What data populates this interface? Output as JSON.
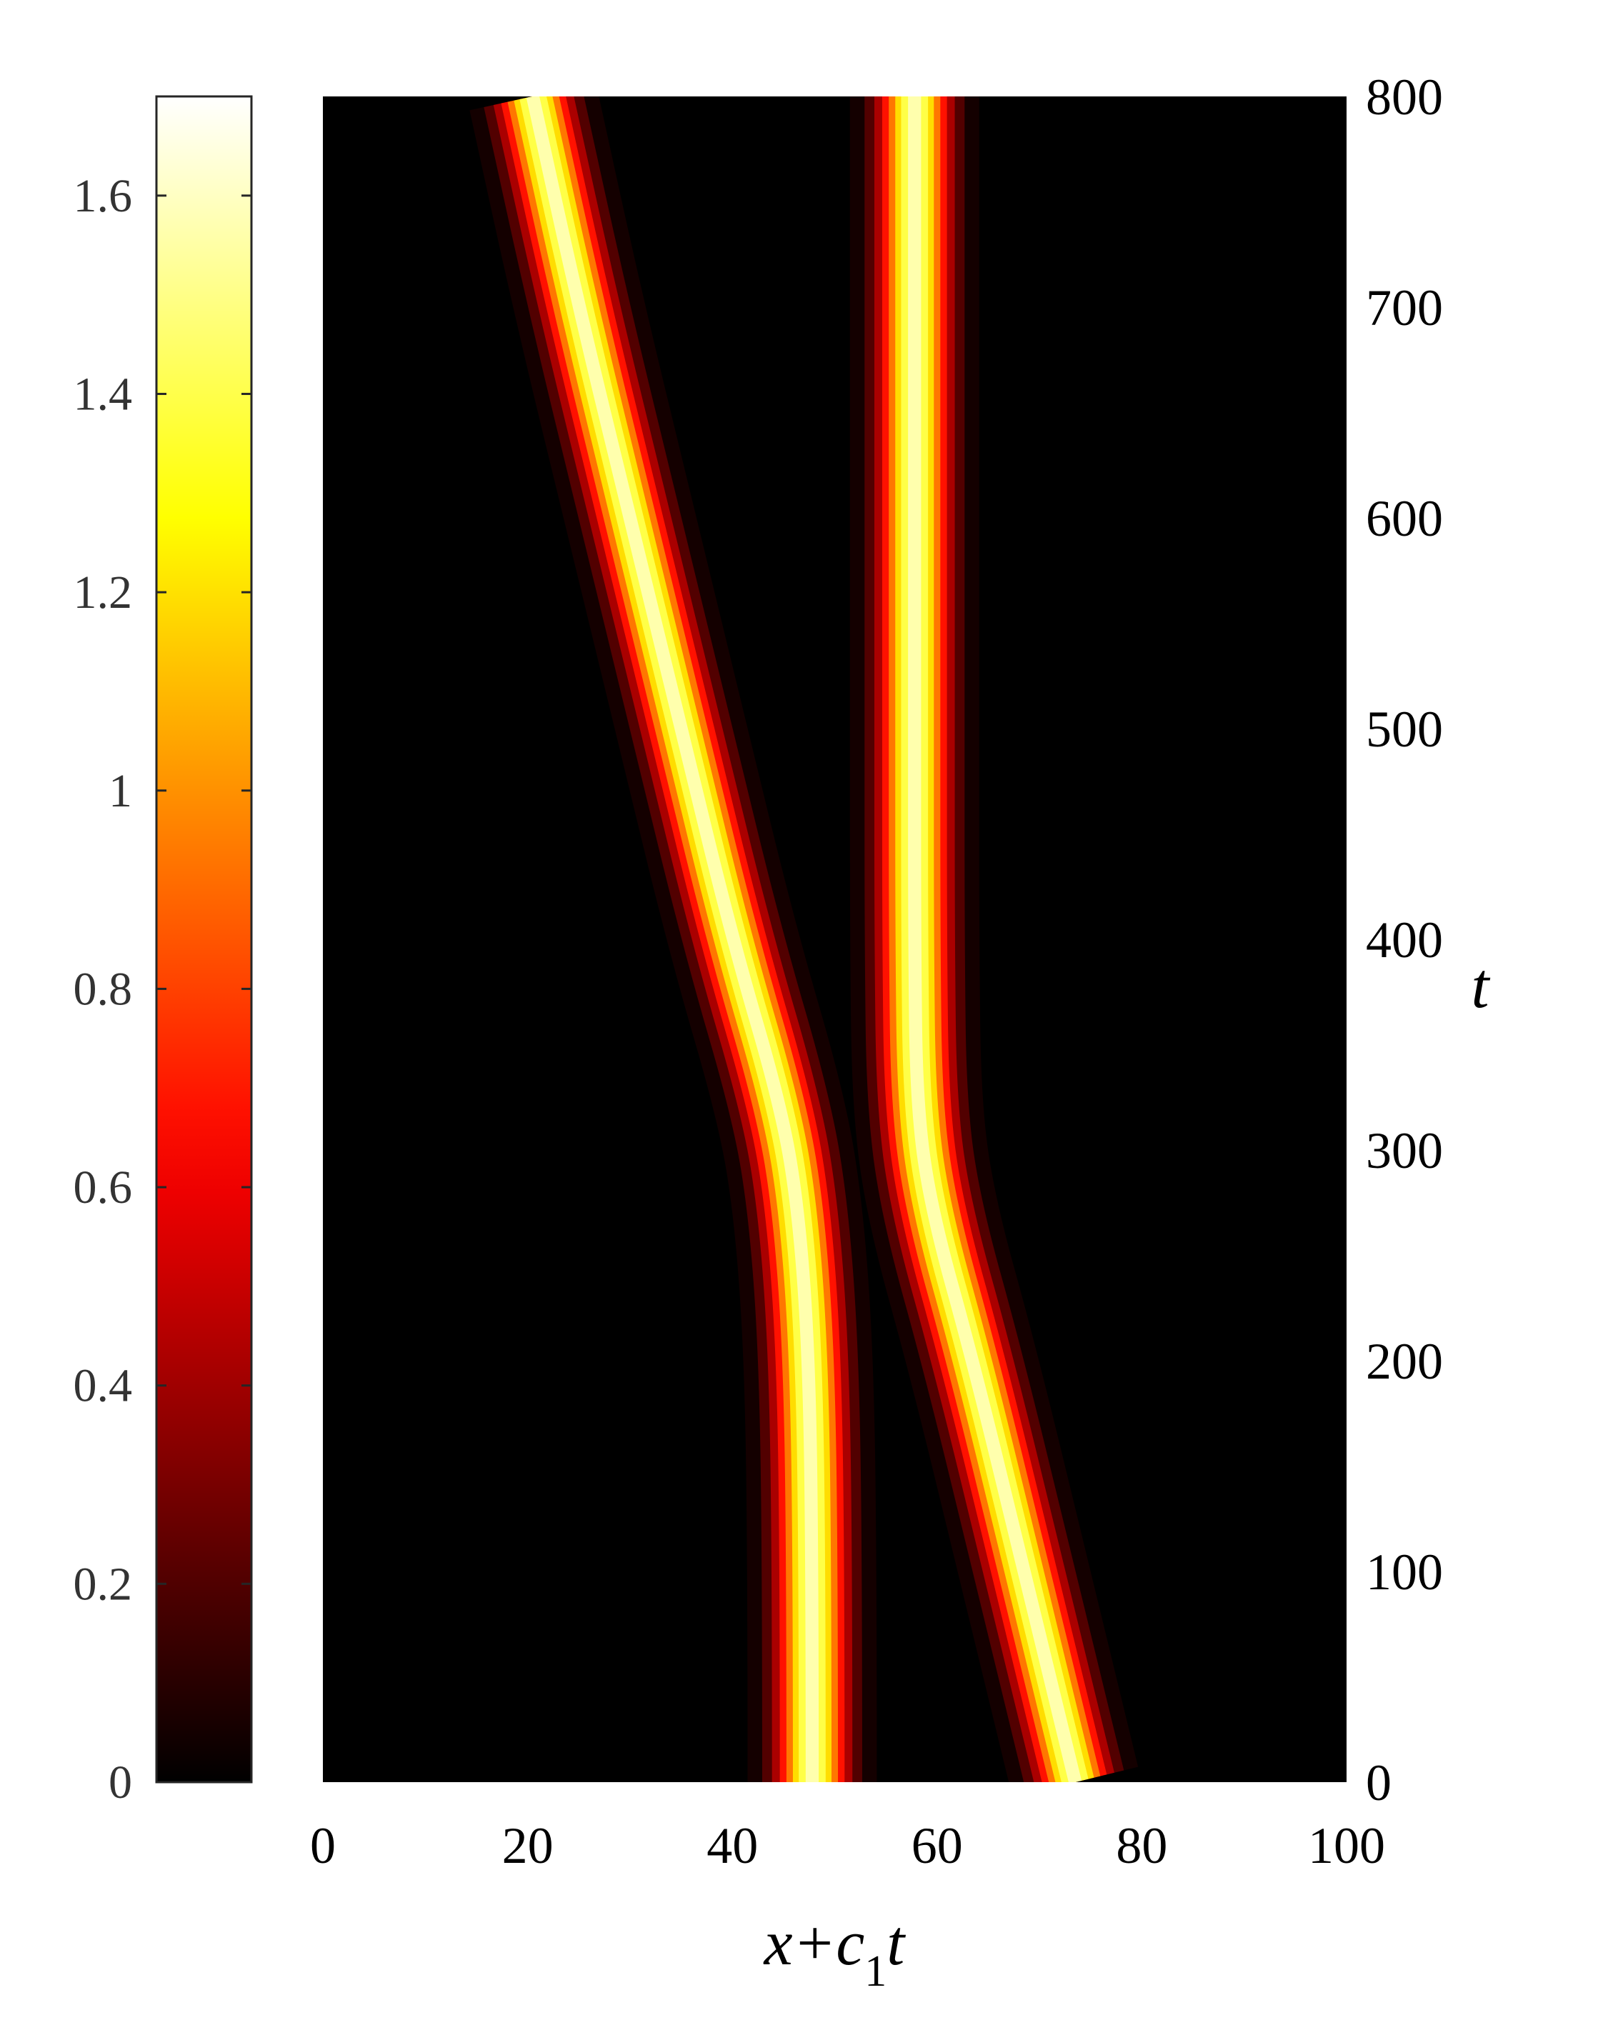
{
  "chart_data": {
    "type": "heatmap",
    "title": "",
    "xlabel": {
      "prefix": "x+c",
      "subscript": "1",
      "suffix": "t"
    },
    "ylabel": "t",
    "xlim": [
      0,
      100
    ],
    "ylim": [
      0,
      800
    ],
    "x_ticks": [
      "0",
      "20",
      "40",
      "60",
      "80",
      "100"
    ],
    "y_ticks": [
      "0",
      "100",
      "200",
      "300",
      "400",
      "500",
      "600",
      "700",
      "800"
    ],
    "y_axis_side": "right",
    "colormap": "hot",
    "colorbar": {
      "position": "left",
      "range": [
        0,
        1.7
      ],
      "ticks": [
        "0",
        "0.2",
        "0.4",
        "0.6",
        "0.8",
        "1",
        "1.2",
        "1.4",
        "1.6"
      ]
    },
    "background_color": "#000000",
    "series": [
      {
        "path": [
          [
            47.8,
            0
          ],
          [
            47.8,
            100
          ],
          [
            47.5,
            200
          ],
          [
            46.5,
            270
          ],
          [
            44.8,
            320
          ],
          [
            40,
            400
          ],
          [
            35,
            500
          ],
          [
            30,
            600
          ],
          [
            25,
            700
          ],
          [
            20.5,
            800
          ]
        ],
        "peak": 1.62,
        "width": 2.4
      },
      {
        "path": [
          [
            73.5,
            0
          ],
          [
            68.5,
            100
          ],
          [
            63.5,
            200
          ],
          [
            59.5,
            270
          ],
          [
            58,
            320
          ],
          [
            57.8,
            400
          ],
          [
            57.8,
            500
          ],
          [
            57.8,
            600
          ],
          [
            57.8,
            700
          ],
          [
            57.8,
            800
          ]
        ],
        "peak": 1.62,
        "width": 2.4
      }
    ]
  }
}
